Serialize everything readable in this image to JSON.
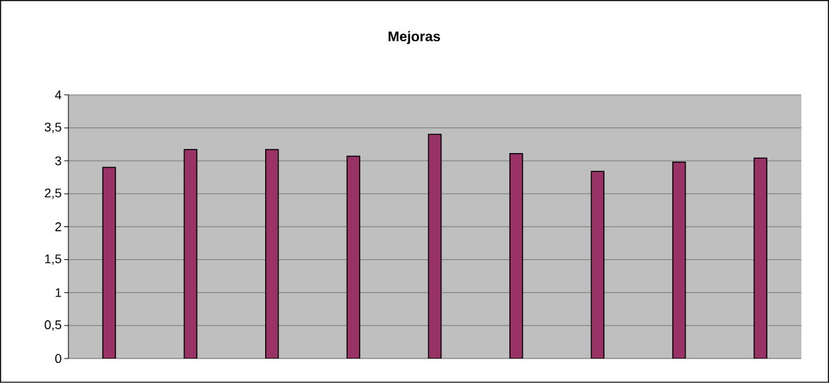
{
  "chart_data": {
    "type": "bar",
    "title": "Mejoras",
    "categories": [
      null,
      null,
      null,
      null,
      null,
      null,
      null,
      null,
      null
    ],
    "values": [
      2.9,
      3.17,
      3.17,
      3.07,
      3.4,
      3.11,
      2.84,
      2.98,
      3.04
    ],
    "color": "#993366",
    "ylim": [
      0,
      4
    ],
    "yticks": [
      0,
      {
        "value": 0.5,
        "label": "0,5"
      },
      1,
      {
        "value": 1.5,
        "label": "1,5"
      },
      2,
      {
        "value": 2.5,
        "label": "2,5"
      },
      3,
      {
        "value": 3.5,
        "label": "3,5"
      },
      4
    ],
    "grid": "y",
    "tick_labels": "y"
  }
}
